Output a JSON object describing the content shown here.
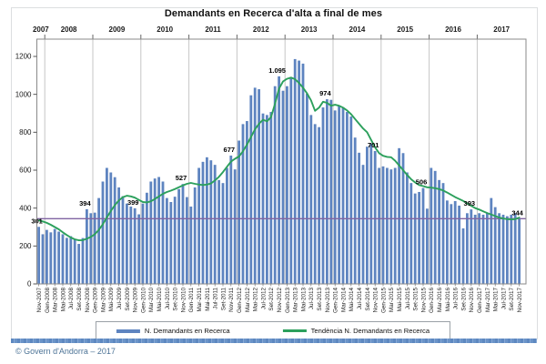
{
  "title": "Demandants en Recerca d'alta a final de mes",
  "footer": {
    "copyright": "© Govern d'Andorra – 2017"
  },
  "legend": {
    "bars_label": "N. Demandants en Recerca",
    "trend_label": "Tendència N. Demandants en Recerca"
  },
  "colors": {
    "bar": "#5E84C0",
    "trend": "#2CA05C",
    "reference": "#8064A2",
    "gridline": "#c6c6c6",
    "plot_border": "#8a8a8a",
    "axis_text": "#1a1a1a",
    "band_blue": "#5D88C0",
    "footer_text": "#4C7396"
  },
  "chart_data": {
    "type": "bar",
    "title": "Demandants en Recerca d'alta a final de mes",
    "x_start": "Nov-2007",
    "x_end": "Nov-2017",
    "months_total": 121,
    "x_label_every_n_months": 2,
    "years_axis": [
      "2007",
      "2008",
      "2009",
      "2010",
      "2011",
      "2012",
      "2013",
      "2014",
      "2015",
      "2016",
      "2017"
    ],
    "categories": [
      "Nov-2007",
      "Gen-2008",
      "Mar-2008",
      "Mai-2008",
      "Jul-2008",
      "Set-2008",
      "Nov-2008",
      "Gen-2009",
      "Mar-2009",
      "Mai-2009",
      "Jul-2009",
      "Set-2009",
      "Nov-2009",
      "Gen-2010",
      "Mar-2010",
      "Mai-2010",
      "Jul-2010",
      "Set-2010",
      "Nov-2010",
      "Gen-2011",
      "Mar-2011",
      "Mai-2011",
      "Jul-2011",
      "Set-2011",
      "Nov-2011",
      "Gen-2012",
      "Mar-2012",
      "Mai-2012",
      "Jul-2012",
      "Set-2012",
      "Nov-2012",
      "Gen-2013",
      "Mar-2013",
      "Mai-2013",
      "Jul-2013",
      "Set-2013",
      "Nov-2013",
      "Gen-2014",
      "Mar-2014",
      "Mai-2014",
      "Jul-2014",
      "Set-2014",
      "Nov-2014",
      "Gen-2015",
      "Mar-2015",
      "Mai-2015",
      "Jul-2015",
      "Set-2015",
      "Nov-2015",
      "Gen-2016",
      "Mar-2016",
      "Mai-2016",
      "Jul-2016",
      "Set-2016",
      "Nov-2016",
      "Gen-2017",
      "Mar-2017",
      "Mai-2017",
      "Jul-2017",
      "Set-2017",
      "Nov-2017"
    ],
    "series": [
      {
        "name": "N. Demandants en Recerca",
        "type": "bar",
        "color": "#5E84C0",
        "values": [
          301,
          262,
          285,
          272,
          290,
          276,
          262,
          243,
          252,
          235,
          211,
          242,
          394,
          373,
          376,
          453,
          540,
          612,
          588,
          563,
          509,
          463,
          424,
          408,
          399,
          367,
          424,
          481,
          540,
          556,
          564,
          540,
          453,
          432,
          460,
          500,
          527,
          458,
          408,
          509,
          612,
          644,
          668,
          652,
          628,
          548,
          532,
          612,
          677,
          604,
          756,
          843,
          859,
          995,
          1035,
          1027,
          899,
          891,
          907,
          1043,
          1095,
          1019,
          1043,
          1091,
          1186,
          1178,
          1162,
          1003,
          891,
          843,
          827,
          931,
          974,
          971,
          915,
          939,
          931,
          907,
          883,
          772,
          692,
          628,
          724,
          740,
          701,
          612,
          620,
          612,
          604,
          612,
          716,
          690,
          588,
          532,
          477,
          485,
          506,
          397,
          612,
          596,
          548,
          532,
          440,
          421,
          437,
          413,
          293,
          373,
          393,
          365,
          373,
          365,
          373,
          453,
          405,
          373,
          365,
          357,
          365,
          373,
          344
        ]
      },
      {
        "name": "Tendència N. Demandants en Recerca",
        "type": "line",
        "color": "#2CA05C",
        "values": [
          335,
          330,
          322,
          312,
          300,
          288,
          272,
          258,
          245,
          235,
          230,
          231,
          238,
          248,
          262,
          285,
          315,
          350,
          385,
          415,
          440,
          458,
          465,
          462,
          455,
          443,
          432,
          430,
          436,
          448,
          462,
          475,
          485,
          492,
          500,
          510,
          520,
          528,
          533,
          528,
          524,
          522,
          524,
          530,
          546,
          565,
          590,
          618,
          645,
          660,
          672,
          700,
          735,
          775,
          815,
          845,
          866,
          858,
          880,
          950,
          1030,
          1068,
          1082,
          1088,
          1080,
          1060,
          1035,
          1005,
          968,
          913,
          930,
          961,
          955,
          940,
          945,
          940,
          930,
          915,
          895,
          870,
          845,
          820,
          800,
          760,
          720,
          690,
          676,
          670,
          668,
          650,
          625,
          600,
          575,
          552,
          535,
          522,
          516,
          510,
          508,
          505,
          500,
          493,
          482,
          470,
          458,
          448,
          438,
          425,
          412,
          400,
          392,
          383,
          374,
          366,
          358,
          350,
          345,
          342,
          341,
          342,
          350
        ]
      }
    ],
    "reference_line": {
      "value": 344,
      "color": "#8064A2"
    },
    "annotations": [
      {
        "index": 0,
        "label": "301"
      },
      {
        "index": 12,
        "label": "394"
      },
      {
        "index": 24,
        "label": "399"
      },
      {
        "index": 36,
        "label": "527"
      },
      {
        "index": 48,
        "label": "677"
      },
      {
        "index": 60,
        "label": "1.095"
      },
      {
        "index": 72,
        "label": "974"
      },
      {
        "index": 84,
        "label": "701"
      },
      {
        "index": 96,
        "label": "506"
      },
      {
        "index": 108,
        "label": "393"
      },
      {
        "index": 120,
        "label": "344"
      }
    ],
    "ylim": [
      0,
      1200
    ],
    "y_ticks": [
      0,
      200,
      400,
      600,
      800,
      1000,
      1200
    ],
    "y_tick_labels": [
      "0",
      "200",
      "400",
      "600",
      "800",
      "1000",
      "1200"
    ],
    "grid": "vertical-year-lines",
    "legend_position": "bottom"
  }
}
